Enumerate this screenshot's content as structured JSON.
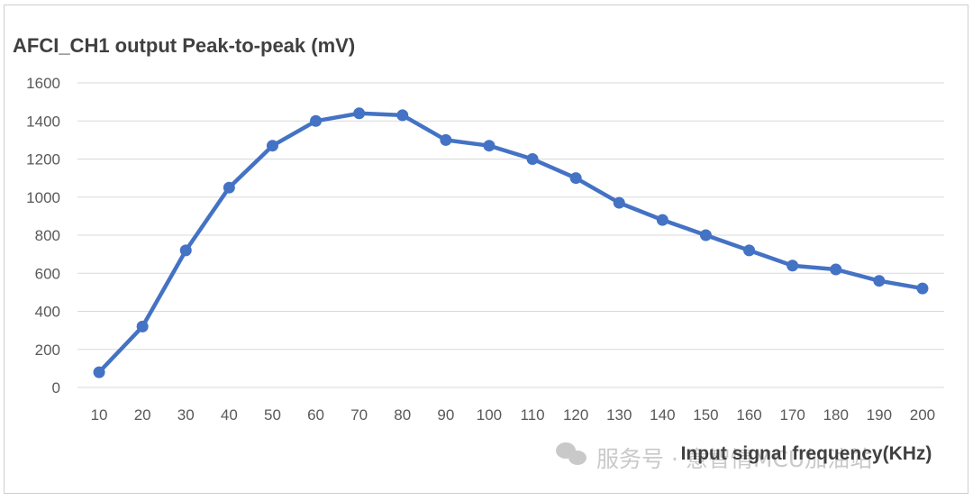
{
  "chart_data": {
    "type": "line",
    "title": "AFCI_CH1 output Peak-to-peak (mV)",
    "xlabel": "Input signal frequency(KHz)",
    "ylabel": "",
    "categories": [
      "10",
      "20",
      "30",
      "40",
      "50",
      "60",
      "70",
      "80",
      "90",
      "100",
      "110",
      "120",
      "130",
      "140",
      "150",
      "160",
      "170",
      "180",
      "190",
      "200"
    ],
    "series": [
      {
        "name": "AFCI_CH1 output Peak-to-peak (mV)",
        "values": [
          80,
          320,
          720,
          1050,
          1270,
          1400,
          1440,
          1430,
          1300,
          1270,
          1200,
          1100,
          970,
          880,
          800,
          720,
          640,
          620,
          560,
          520
        ]
      }
    ],
    "ylim": [
      0,
      1600
    ],
    "yticks": [
      0,
      200,
      400,
      600,
      800,
      1000,
      1200,
      1400,
      1600
    ],
    "grid": true,
    "legend": "none",
    "line_color": "#4472c4"
  },
  "watermark": {
    "text": "服务号 · 意智情MCU加油站"
  }
}
